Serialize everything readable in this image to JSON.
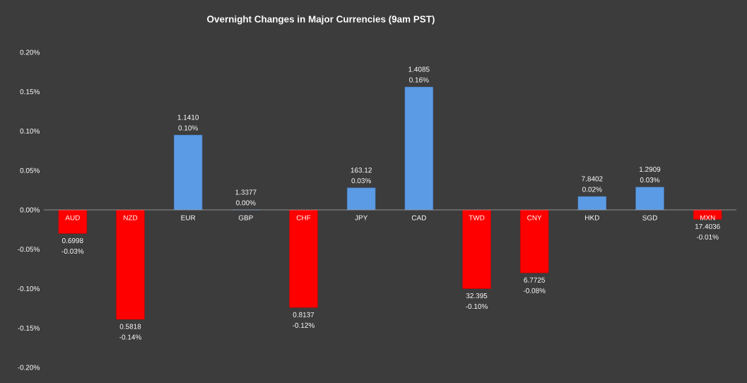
{
  "chart_data": {
    "type": "bar",
    "title": "Overnight Changes in Major Currencies (9am PST)",
    "categories": [
      "AUD",
      "NZD",
      "EUR",
      "GBP",
      "CHF",
      "JPY",
      "CAD",
      "TWD",
      "CNY",
      "HKD",
      "SGD",
      "MXN"
    ],
    "values": [
      -0.03,
      -0.139,
      0.095,
      0.0,
      -0.124,
      0.028,
      0.156,
      -0.1,
      -0.08,
      0.017,
      0.029,
      -0.012
    ],
    "colors": [
      "#ff0000",
      "#ff0000",
      "#5b9be6",
      "#5b9be6",
      "#ff0000",
      "#5b9be6",
      "#5b9be6",
      "#ff0000",
      "#ff0000",
      "#5b9be6",
      "#5b9be6",
      "#ff0000"
    ],
    "value_labels": [
      "-0.03%",
      "-0.14%",
      "0.10%",
      "0.00%",
      "-0.12%",
      "0.03%",
      "0.16%",
      "-0.10%",
      "-0.08%",
      "0.02%",
      "0.03%",
      "-0.01%"
    ],
    "annotations": [
      {
        "text": "0.6998",
        "x": "AUD",
        "y": -0.03
      },
      {
        "text": "0.5818",
        "x": "NZD",
        "y": -0.139
      },
      {
        "text": "1.1410",
        "x": "EUR",
        "y": 0.095
      },
      {
        "text": "1.3377",
        "x": "GBP",
        "y": 0.0
      },
      {
        "text": "0.8137",
        "x": "CHF",
        "y": -0.124
      },
      {
        "text": "163.12",
        "x": "JPY",
        "y": 0.028
      },
      {
        "text": "1.4085",
        "x": "CAD",
        "y": 0.156
      },
      {
        "text": "32.395",
        "x": "TWD",
        "y": -0.1
      },
      {
        "text": "6.7725",
        "x": "CNY",
        "y": -0.08
      },
      {
        "text": "7.8402",
        "x": "HKD",
        "y": 0.017
      },
      {
        "text": "1.2909",
        "x": "SGD",
        "y": 0.029
      },
      {
        "text": "17.4036",
        "x": "MXN",
        "y": -0.012
      }
    ],
    "ylim": [
      -0.2,
      0.2
    ],
    "yticks": [
      {
        "value": -0.2,
        "label": "-0.20%"
      },
      {
        "value": -0.15,
        "label": "-0.15%"
      },
      {
        "value": -0.1,
        "label": "-0.10%"
      },
      {
        "value": -0.05,
        "label": "-0.05%"
      },
      {
        "value": 0,
        "label": "0.00%"
      },
      {
        "value": 0.05,
        "label": "0.05%"
      },
      {
        "value": 0.1,
        "label": "0.10%"
      },
      {
        "value": 0.15,
        "label": "0.15%"
      },
      {
        "value": 0.2,
        "label": "0.20%"
      }
    ]
  }
}
